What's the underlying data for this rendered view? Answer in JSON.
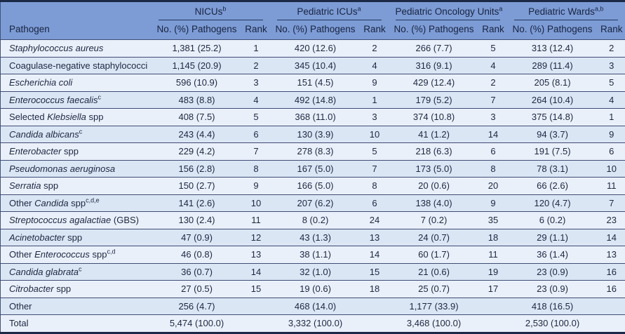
{
  "colors": {
    "header_bg": "#7d9cd6",
    "header_text": "#18233f",
    "body_text": "#1c2742",
    "row_odd": "#eaf0fa",
    "row_even": "#dbe6f5",
    "rule": "#3f4c74",
    "outer_border": "#1b2947"
  },
  "table": {
    "pathogen_header": "Pathogen",
    "groups": [
      {
        "label": "NICUs",
        "sup": "b",
        "value_header": "No. (%) Pathogens",
        "rank_header": "Rank"
      },
      {
        "label": "Pediatric ICUs",
        "sup": "a",
        "value_header": "No. (%) Pathogens",
        "rank_header": "Rank"
      },
      {
        "label": "Pediatric Oncology Units",
        "sup": "a",
        "value_header": "No. (%) Pathogens",
        "rank_header": "Rank"
      },
      {
        "label": "Pediatric Wards",
        "sup": "a,b",
        "value_header": "No. (%) Pathogens",
        "rank_header": "Rank"
      }
    ],
    "rows": [
      {
        "name": [
          {
            "text": "Staphylococcus aureus",
            "italic": true
          }
        ],
        "cells": [
          [
            "1,381 (25.2)",
            "1"
          ],
          [
            "420 (12.6)",
            "2"
          ],
          [
            "266 (7.7)",
            "5"
          ],
          [
            "313 (12.4)",
            "2"
          ]
        ]
      },
      {
        "name": [
          {
            "text": "Coagulase-negative staphylococci"
          }
        ],
        "cells": [
          [
            "1,145 (20.9)",
            "2"
          ],
          [
            "345 (10.4)",
            "4"
          ],
          [
            "316 (9.1)",
            "4"
          ],
          [
            "289 (11.4)",
            "3"
          ]
        ]
      },
      {
        "name": [
          {
            "text": "Escherichia coli",
            "italic": true
          }
        ],
        "cells": [
          [
            "596 (10.9)",
            "3"
          ],
          [
            "151 (4.5)",
            "9"
          ],
          [
            "429 (12.4)",
            "2"
          ],
          [
            "205 (8.1)",
            "5"
          ]
        ]
      },
      {
        "name": [
          {
            "text": "Enterococcus faecalis",
            "italic": true
          },
          {
            "text": "c",
            "sup": true
          }
        ],
        "cells": [
          [
            "483 (8.8)",
            "4"
          ],
          [
            "492 (14.8)",
            "1"
          ],
          [
            "179 (5.2)",
            "7"
          ],
          [
            "264 (10.4)",
            "4"
          ]
        ]
      },
      {
        "name": [
          {
            "text": "Selected "
          },
          {
            "text": "Klebsiella",
            "italic": true
          },
          {
            "text": " spp"
          }
        ],
        "cells": [
          [
            "408 (7.5)",
            "5"
          ],
          [
            "368 (11.0)",
            "3"
          ],
          [
            "374 (10.8)",
            "3"
          ],
          [
            "375 (14.8)",
            "1"
          ]
        ]
      },
      {
        "name": [
          {
            "text": "Candida albicans",
            "italic": true
          },
          {
            "text": "c",
            "sup": true
          }
        ],
        "cells": [
          [
            "243 (4.4)",
            "6"
          ],
          [
            "130 (3.9)",
            "10"
          ],
          [
            "41 (1.2)",
            "14"
          ],
          [
            "94 (3.7)",
            "9"
          ]
        ]
      },
      {
        "name": [
          {
            "text": "Enterobacter",
            "italic": true
          },
          {
            "text": " spp"
          }
        ],
        "cells": [
          [
            "229 (4.2)",
            "7"
          ],
          [
            "278 (8.3)",
            "5"
          ],
          [
            "218 (6.3)",
            "6"
          ],
          [
            "191 (7.5)",
            "6"
          ]
        ]
      },
      {
        "name": [
          {
            "text": "Pseudomonas aeruginosa",
            "italic": true
          }
        ],
        "cells": [
          [
            "156 (2.8)",
            "8"
          ],
          [
            "167 (5.0)",
            "7"
          ],
          [
            "173 (5.0)",
            "8"
          ],
          [
            "78 (3.1)",
            "10"
          ]
        ]
      },
      {
        "name": [
          {
            "text": "Serratia",
            "italic": true
          },
          {
            "text": " spp"
          }
        ],
        "cells": [
          [
            "150 (2.7)",
            "9"
          ],
          [
            "166 (5.0)",
            "8"
          ],
          [
            "20 (0.6)",
            "20"
          ],
          [
            "66 (2.6)",
            "11"
          ]
        ]
      },
      {
        "name": [
          {
            "text": "Other "
          },
          {
            "text": "Candida",
            "italic": true
          },
          {
            "text": " spp"
          },
          {
            "text": "c,d,e",
            "sup": true
          }
        ],
        "cells": [
          [
            "141 (2.6)",
            "10"
          ],
          [
            "207 (6.2)",
            "6"
          ],
          [
            "138 (4.0)",
            "9"
          ],
          [
            "120 (4.7)",
            "7"
          ]
        ]
      },
      {
        "name": [
          {
            "text": "Streptococcus agalactiae",
            "italic": true
          },
          {
            "text": " (GBS)"
          }
        ],
        "cells": [
          [
            "130 (2.4)",
            "11"
          ],
          [
            "8 (0.2)",
            "24"
          ],
          [
            "7 (0.2)",
            "35"
          ],
          [
            "6 (0.2)",
            "23"
          ]
        ]
      },
      {
        "name": [
          {
            "text": "Acinetobacter",
            "italic": true
          },
          {
            "text": " spp"
          }
        ],
        "cells": [
          [
            "47 (0.9)",
            "12"
          ],
          [
            "43 (1.3)",
            "13"
          ],
          [
            "24 (0.7)",
            "18"
          ],
          [
            "29 (1.1)",
            "14"
          ]
        ]
      },
      {
        "name": [
          {
            "text": "Other "
          },
          {
            "text": "Enterococcus",
            "italic": true
          },
          {
            "text": " spp"
          },
          {
            "text": "c,d",
            "sup": true
          }
        ],
        "cells": [
          [
            "46 (0.8)",
            "13"
          ],
          [
            "38 (1.1)",
            "14"
          ],
          [
            "60 (1.7)",
            "11"
          ],
          [
            "36 (1.4)",
            "13"
          ]
        ]
      },
      {
        "name": [
          {
            "text": "Candida glabrata",
            "italic": true
          },
          {
            "text": "c",
            "sup": true
          }
        ],
        "cells": [
          [
            "36 (0.7)",
            "14"
          ],
          [
            "32 (1.0)",
            "15"
          ],
          [
            "21 (0.6)",
            "19"
          ],
          [
            "23 (0.9)",
            "16"
          ]
        ]
      },
      {
        "name": [
          {
            "text": "Citrobacter",
            "italic": true
          },
          {
            "text": " spp"
          }
        ],
        "cells": [
          [
            "27 (0.5)",
            "15"
          ],
          [
            "19 (0.6)",
            "18"
          ],
          [
            "25 (0.7)",
            "17"
          ],
          [
            "23 (0.9)",
            "16"
          ]
        ]
      },
      {
        "name": [
          {
            "text": "Other"
          }
        ],
        "kind": "other",
        "cells": [
          [
            "256 (4.7)",
            ""
          ],
          [
            "468 (14.0)",
            ""
          ],
          [
            "1,177 (33.9)",
            ""
          ],
          [
            "418 (16.5)",
            ""
          ]
        ]
      },
      {
        "name": [
          {
            "text": "Total"
          }
        ],
        "kind": "total",
        "cells": [
          [
            "5,474 (100.0)",
            ""
          ],
          [
            "3,332 (100.0)",
            ""
          ],
          [
            "3,468 (100.0)",
            ""
          ],
          [
            "2,530 (100.0)",
            ""
          ]
        ]
      }
    ]
  }
}
